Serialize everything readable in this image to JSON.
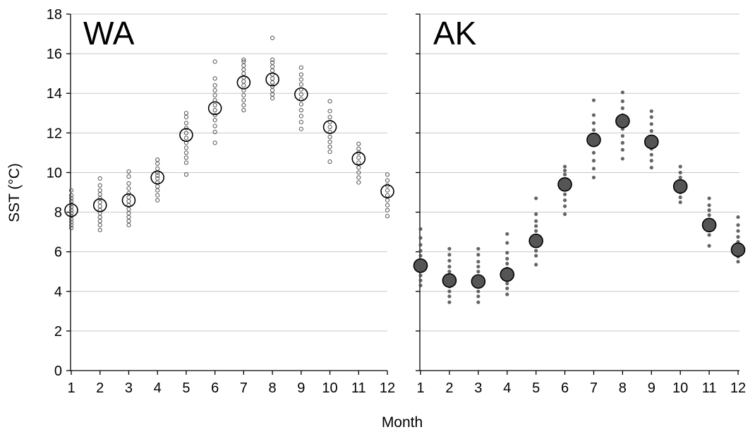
{
  "chart_data": {
    "type": "scatter",
    "xlabel": "Month",
    "ylabel": "SST (°C)",
    "ylim": [
      0,
      18
    ],
    "yticks": [
      0,
      2,
      4,
      6,
      8,
      10,
      12,
      14,
      16,
      18
    ],
    "xticks": [
      1,
      2,
      3,
      4,
      5,
      6,
      7,
      8,
      9,
      10,
      11,
      12
    ],
    "grid": "horizontal",
    "panels": [
      {
        "label": "WA",
        "marker_style": "open",
        "point_color": "#555555",
        "mean_color": "#000000",
        "means": [
          8.1,
          8.35,
          8.6,
          9.75,
          11.9,
          13.25,
          14.55,
          14.7,
          13.95,
          12.3,
          10.7,
          9.05
        ],
        "points": [
          [
            7.2,
            7.35,
            7.5,
            7.65,
            7.8,
            7.95,
            8.1,
            8.25,
            8.4,
            8.55,
            8.7,
            8.85,
            9.1
          ],
          [
            7.1,
            7.35,
            7.55,
            7.75,
            7.95,
            8.1,
            8.3,
            8.5,
            8.7,
            8.9,
            9.1,
            9.35,
            9.7
          ],
          [
            7.35,
            7.55,
            7.75,
            7.95,
            8.15,
            8.35,
            8.55,
            8.75,
            8.95,
            9.2,
            9.45,
            9.8,
            10.05
          ],
          [
            8.6,
            8.85,
            9.1,
            9.3,
            9.5,
            9.7,
            9.85,
            10.0,
            10.2,
            10.45,
            10.65
          ],
          [
            9.9,
            10.5,
            10.75,
            11.0,
            11.25,
            11.5,
            11.75,
            12.0,
            12.25,
            12.5,
            12.8,
            13.0
          ],
          [
            11.5,
            12.05,
            12.35,
            12.65,
            12.9,
            13.15,
            13.4,
            13.65,
            13.9,
            14.15,
            14.4,
            14.75,
            15.6
          ],
          [
            13.15,
            13.4,
            13.65,
            13.9,
            14.15,
            14.4,
            14.6,
            14.8,
            15.0,
            15.2,
            15.4,
            15.6,
            15.7
          ],
          [
            13.75,
            13.95,
            14.15,
            14.35,
            14.55,
            14.75,
            14.95,
            15.15,
            15.35,
            15.55,
            15.7,
            16.8
          ],
          [
            12.2,
            12.55,
            12.85,
            13.15,
            13.45,
            13.7,
            13.95,
            14.2,
            14.45,
            14.7,
            14.95,
            15.3
          ],
          [
            10.55,
            11.05,
            11.3,
            11.55,
            11.8,
            12.05,
            12.3,
            12.55,
            12.8,
            13.1,
            13.6
          ],
          [
            9.5,
            9.75,
            10.0,
            10.25,
            10.5,
            10.75,
            11.0,
            11.2,
            11.45
          ],
          [
            7.8,
            8.1,
            8.35,
            8.6,
            8.85,
            9.1,
            9.35,
            9.6,
            9.9
          ]
        ]
      },
      {
        "label": "AK",
        "marker_style": "filled",
        "point_color": "#4a4a4a",
        "mean_color": "#555555",
        "means": [
          5.3,
          4.55,
          4.5,
          4.85,
          6.55,
          9.4,
          11.65,
          12.6,
          11.55,
          9.3,
          7.35,
          6.1
        ],
        "points": [
          [
            4.3,
            4.55,
            4.8,
            5.05,
            5.3,
            5.55,
            5.8,
            6.05,
            6.35,
            6.7,
            7.15
          ],
          [
            3.45,
            3.75,
            4.0,
            4.25,
            4.5,
            4.75,
            5.0,
            5.25,
            5.55,
            5.85,
            6.15
          ],
          [
            3.45,
            3.75,
            4.0,
            4.25,
            4.5,
            4.75,
            5.0,
            5.25,
            5.5,
            5.85,
            6.15
          ],
          [
            3.85,
            4.15,
            4.4,
            4.65,
            4.9,
            5.15,
            5.4,
            5.65,
            5.95,
            6.45,
            6.9
          ],
          [
            5.35,
            5.8,
            6.05,
            6.3,
            6.55,
            6.8,
            7.05,
            7.3,
            7.55,
            7.9,
            8.7
          ],
          [
            7.9,
            8.3,
            8.6,
            8.9,
            9.15,
            9.4,
            9.65,
            9.9,
            10.1,
            10.3
          ],
          [
            9.75,
            10.2,
            10.6,
            11.0,
            11.4,
            11.8,
            12.15,
            12.5,
            12.9,
            13.65
          ],
          [
            10.7,
            11.15,
            11.5,
            11.85,
            12.2,
            12.55,
            12.9,
            13.25,
            13.6,
            14.05
          ],
          [
            10.25,
            10.6,
            10.9,
            11.2,
            11.5,
            11.8,
            12.1,
            12.45,
            12.8,
            13.1
          ],
          [
            8.5,
            8.75,
            9.0,
            9.25,
            9.5,
            9.75,
            10.0,
            10.3
          ],
          [
            6.3,
            6.85,
            7.1,
            7.35,
            7.6,
            7.85,
            8.1,
            8.35,
            8.7
          ],
          [
            5.5,
            5.75,
            6.0,
            6.25,
            6.5,
            6.75,
            7.05,
            7.35,
            7.75
          ]
        ]
      }
    ]
  }
}
